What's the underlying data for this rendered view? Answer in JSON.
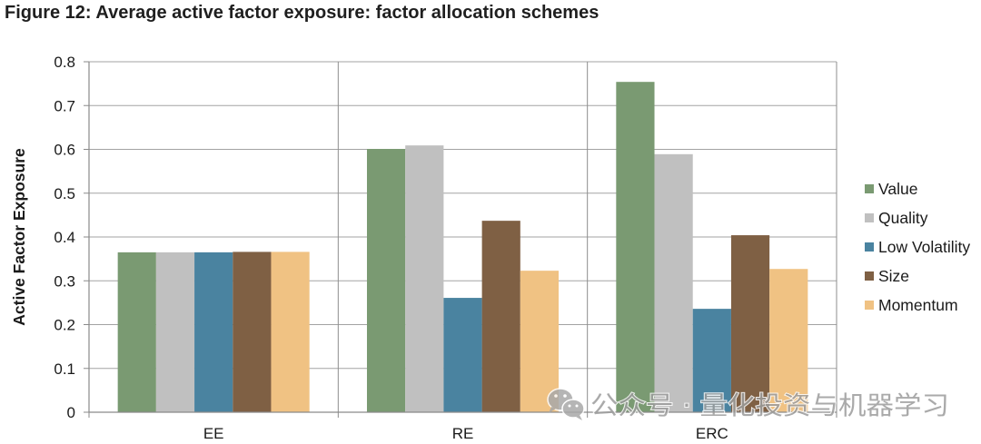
{
  "chart_data": {
    "type": "bar",
    "title": "Figure 12: Average active factor exposure: factor allocation schemes",
    "ylabel": "Active Factor Exposure",
    "categories": [
      "EE",
      "RE",
      "ERC"
    ],
    "ylim": [
      0,
      0.8
    ],
    "yticks": [
      0,
      0.1,
      0.2,
      0.3,
      0.4,
      0.5,
      0.6,
      0.7,
      0.8
    ],
    "grid": true,
    "legend_position": "right",
    "series": [
      {
        "name": "Value",
        "color": "#7a9a72",
        "values": [
          0.365,
          0.601,
          0.754
        ]
      },
      {
        "name": "Quality",
        "color": "#c0c0c0",
        "values": [
          0.365,
          0.609,
          0.589
        ]
      },
      {
        "name": "Low Volatility",
        "color": "#4a83a0",
        "values": [
          0.365,
          0.261,
          0.236
        ]
      },
      {
        "name": "Size",
        "color": "#7f6044",
        "values": [
          0.366,
          0.437,
          0.404
        ]
      },
      {
        "name": "Momentum",
        "color": "#f0c283",
        "values": [
          0.366,
          0.323,
          0.327
        ]
      }
    ]
  },
  "watermark": {
    "icon": "wechat-icon",
    "text": "公众号 · 量化投资与机器学习"
  }
}
